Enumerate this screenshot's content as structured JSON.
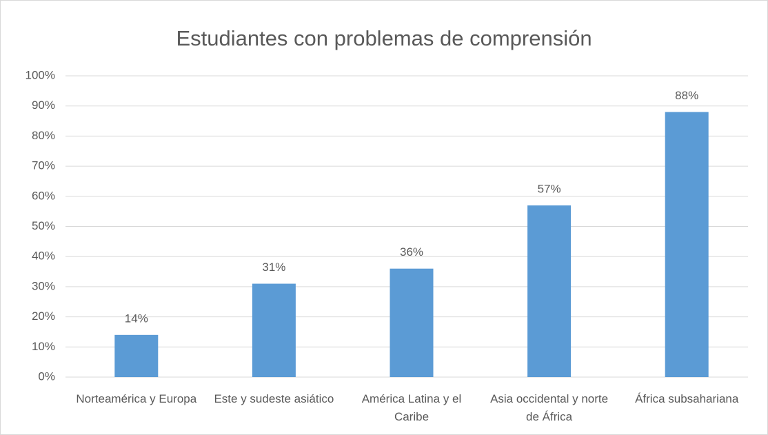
{
  "chart_data": {
    "type": "bar",
    "title": "Estudiantes con problemas de comprensión",
    "categories": [
      "Norteamérica y Europa",
      "Este y sudeste asiático",
      "América Latina y el Caribe",
      "Asia occidental y norte de África",
      "África subsahariana"
    ],
    "values": [
      14,
      31,
      36,
      57,
      88
    ],
    "value_labels": [
      "14%",
      "31%",
      "36%",
      "57%",
      "88%"
    ],
    "color": "#5b9bd5",
    "ylim": [
      0,
      100
    ],
    "yticks": [
      {
        "value": 0,
        "label": "0%"
      },
      {
        "value": 10,
        "label": "10%"
      },
      {
        "value": 20,
        "label": "20%"
      },
      {
        "value": 30,
        "label": "30%"
      },
      {
        "value": 40,
        "label": "40%"
      },
      {
        "value": 50,
        "label": "50%"
      },
      {
        "value": 60,
        "label": "60%"
      },
      {
        "value": 70,
        "label": "70%"
      },
      {
        "value": 80,
        "label": "80%"
      },
      {
        "value": 90,
        "label": "90%"
      },
      {
        "value": 100,
        "label": "100%"
      }
    ],
    "grid": true
  }
}
